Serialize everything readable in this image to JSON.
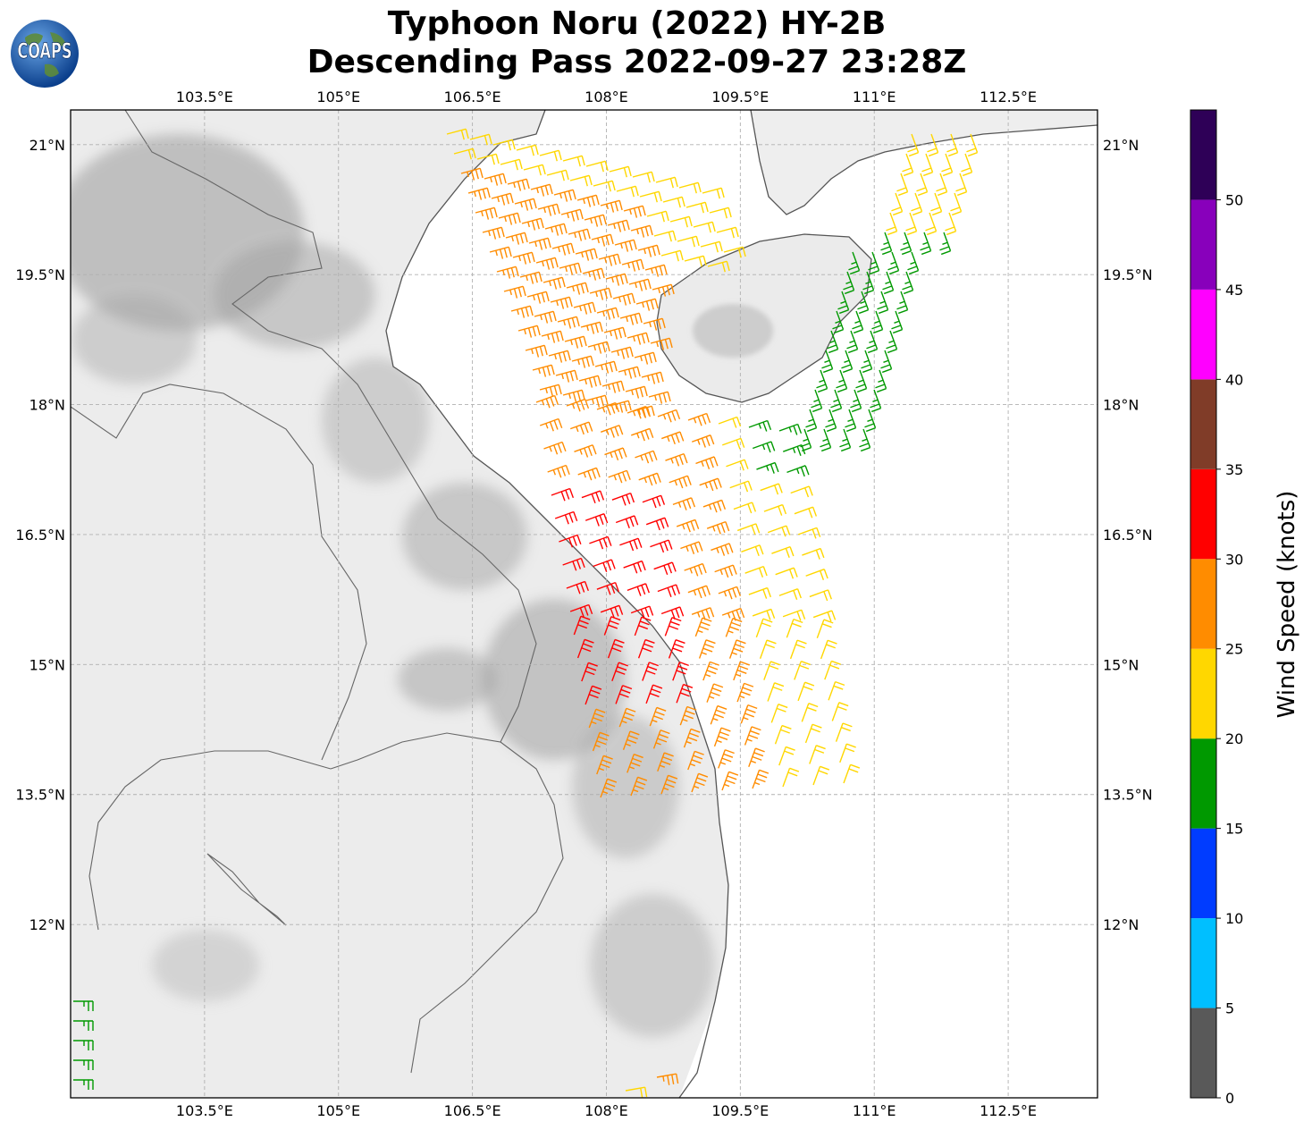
{
  "title": {
    "line1": "Typhoon Noru (2022) HY-2B",
    "line2": "Descending Pass 2022-09-27 23:28Z"
  },
  "logo": {
    "text": "COAPS",
    "icon": "globe-icon"
  },
  "map": {
    "lon_range": [
      102.0,
      113.5
    ],
    "lat_range": [
      10.0,
      21.4
    ],
    "lon_ticks": [
      {
        "value": 103.5,
        "label": "103.5°E"
      },
      {
        "value": 105.0,
        "label": "105°E"
      },
      {
        "value": 106.5,
        "label": "106.5°E"
      },
      {
        "value": 108.0,
        "label": "108°E"
      },
      {
        "value": 109.5,
        "label": "109.5°E"
      },
      {
        "value": 111.0,
        "label": "111°E"
      },
      {
        "value": 112.5,
        "label": "112.5°E"
      }
    ],
    "lat_ticks": [
      {
        "value": 21.0,
        "label": "21°N"
      },
      {
        "value": 19.5,
        "label": "19.5°N"
      },
      {
        "value": 18.0,
        "label": "18°N"
      },
      {
        "value": 16.5,
        "label": "16.5°N"
      },
      {
        "value": 15.0,
        "label": "15°N"
      },
      {
        "value": 13.5,
        "label": "13.5°N"
      },
      {
        "value": 12.0,
        "label": "12°N"
      }
    ],
    "gridlines": true,
    "background": "grayscale topography"
  },
  "colorbar": {
    "label": "Wind Speed (knots)",
    "bins": [
      {
        "min": 0,
        "max": 5,
        "color": "#595959"
      },
      {
        "min": 5,
        "max": 10,
        "color": "#00bfff"
      },
      {
        "min": 10,
        "max": 15,
        "color": "#003cff"
      },
      {
        "min": 15,
        "max": 20,
        "color": "#009900"
      },
      {
        "min": 20,
        "max": 25,
        "color": "#ffd700"
      },
      {
        "min": 25,
        "max": 30,
        "color": "#ff8c00"
      },
      {
        "min": 30,
        "max": 35,
        "color": "#ff0000"
      },
      {
        "min": 35,
        "max": 40,
        "color": "#803c28"
      },
      {
        "min": 40,
        "max": 45,
        "color": "#ff00ff"
      },
      {
        "min": 45,
        "max": 50,
        "color": "#8800bb"
      },
      {
        "min": 50,
        "max": 55,
        "color": "#2e0057"
      }
    ],
    "tick_values": [
      "0",
      "5",
      "10",
      "15",
      "20",
      "25",
      "30",
      "35",
      "40",
      "45",
      "50"
    ]
  }
}
